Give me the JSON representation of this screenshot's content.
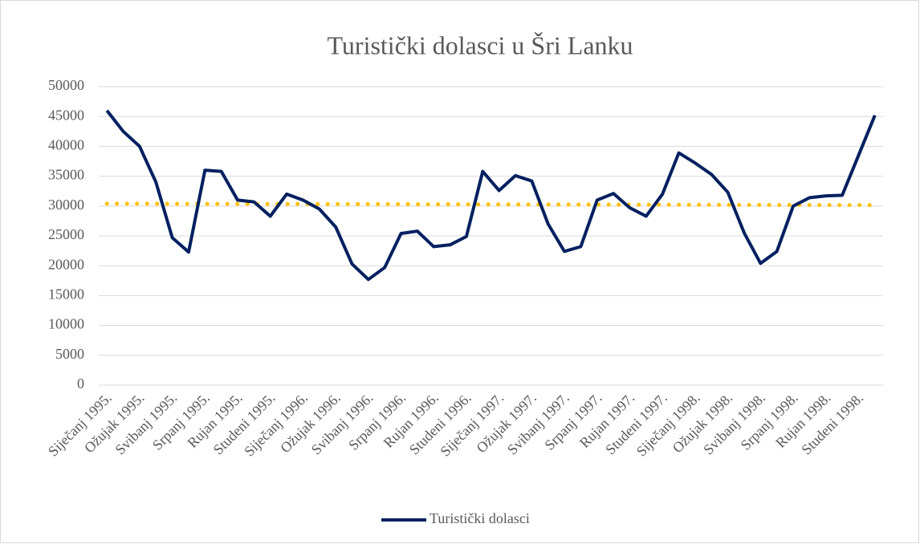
{
  "chart_data": {
    "type": "line",
    "title": "Turistički dolasci u Šri Lanku",
    "categories": [
      "Siječanj 1995.",
      null,
      "Ožujak 1995.",
      null,
      "Svibanj 1995.",
      null,
      "Srpanj 1995.",
      null,
      "Rujan 1995.",
      null,
      "Studeni 1995.",
      null,
      "Siječanj 1996.",
      null,
      "Ožujak 1996.",
      null,
      "Svibanj 1996.",
      null,
      "Srpanj 1996.",
      null,
      "Rujan 1996.",
      null,
      "Studeni 1996.",
      null,
      "Siječanj 1997.",
      null,
      "Ožujak 1997.",
      null,
      "Svibanj 1997.",
      null,
      "Srpanj 1997.",
      null,
      "Rujan 1997.",
      null,
      "Studeni 1997.",
      null,
      "Siječanj 1998.",
      null,
      "Ožujak 1998.",
      null,
      "Svibanj 1998.",
      null,
      "Srpanj 1998.",
      null,
      "Rujan 1998.",
      null,
      "Studeni 1998.",
      null
    ],
    "series": [
      {
        "name": "Turistički dolasci",
        "color": "#002060",
        "values": [
          46000,
          42500,
          40000,
          34000,
          24700,
          22300,
          36000,
          35800,
          31000,
          30700,
          28300,
          32000,
          31000,
          29500,
          26500,
          20300,
          17700,
          19700,
          25400,
          25800,
          23200,
          23500,
          24900,
          35800,
          32600,
          35100,
          34200,
          27000,
          22400,
          23200,
          31000,
          32100,
          29700,
          28300,
          32000,
          38900,
          37200,
          35300,
          32300,
          25500,
          20400,
          22400,
          30000,
          31400,
          31700,
          31800,
          38500,
          45200
        ]
      }
    ],
    "trendline": {
      "color": "#ffc000",
      "values": [
        30400,
        30150
      ]
    },
    "ylim": [
      0,
      50000
    ],
    "yticks": [
      0,
      5000,
      10000,
      15000,
      20000,
      25000,
      30000,
      35000,
      40000,
      45000,
      50000
    ],
    "grid": true,
    "legend": "bottom"
  }
}
